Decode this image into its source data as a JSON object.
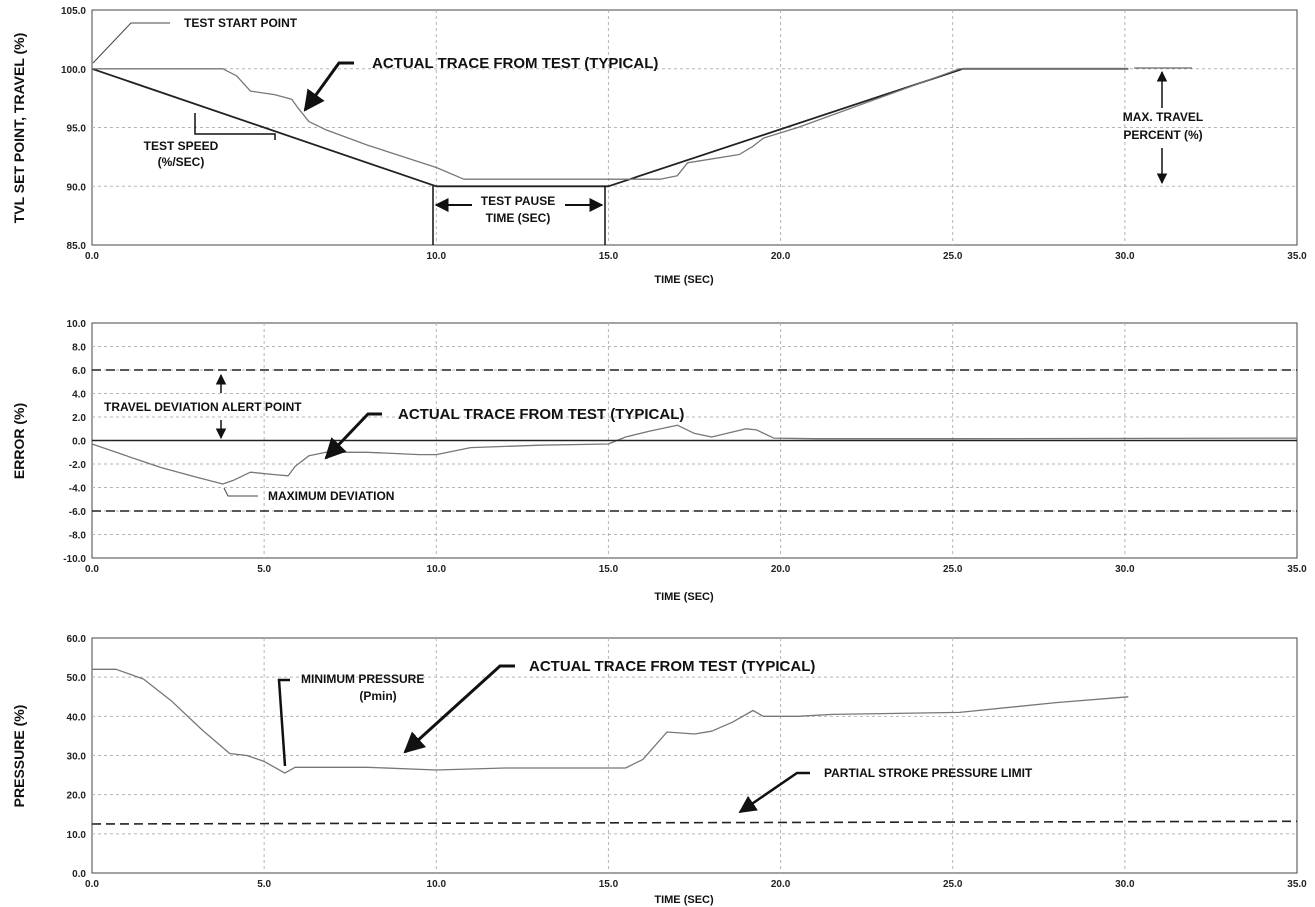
{
  "chart_data": [
    {
      "type": "line",
      "ylabel": "TVL SET POINT, TRAVEL (%)",
      "xlabel": "TIME (SEC)",
      "xlim": [
        0,
        35
      ],
      "ylim": [
        85,
        105
      ],
      "x_ticks": [
        "0.0",
        "10.0",
        "15.0",
        "20.0",
        "25.0",
        "30.0",
        "35.0"
      ],
      "y_ticks": [
        "105.0",
        "100.0",
        "95.0",
        "90.0",
        "85.0"
      ],
      "grid": true,
      "series": [
        {
          "role": "set point",
          "x": [
            0,
            10,
            15,
            25.3,
            30.1
          ],
          "y": [
            100,
            90,
            90,
            100,
            100
          ]
        },
        {
          "role": "travel",
          "x": [
            0,
            3.8,
            4.2,
            4.6,
            5.3,
            5.8,
            6.0,
            6.3,
            6.8,
            8.0,
            10.0,
            10.8,
            16.5,
            17.0,
            17.3,
            18.8,
            19.2,
            19.5,
            20.5,
            25.2,
            30.1
          ],
          "y": [
            100,
            100,
            99.4,
            98.1,
            97.8,
            97.4,
            96.6,
            95.5,
            94.8,
            93.5,
            91.6,
            90.6,
            90.6,
            90.9,
            92.0,
            92.7,
            93.4,
            94.1,
            95.0,
            100,
            100
          ]
        }
      ],
      "annotations": {
        "test_start_point": "TEST START POINT",
        "actual_trace": "ACTUAL TRACE FROM TEST (TYPICAL)",
        "test_speed": "TEST SPEED",
        "test_speed_unit": "(%/SEC)",
        "test_pause": "TEST PAUSE",
        "test_pause_unit": "TIME (SEC)",
        "max_travel": "MAX. TRAVEL",
        "max_travel_unit": "PERCENT (%)"
      }
    },
    {
      "type": "line",
      "ylabel": "ERROR (%)",
      "xlabel": "TIME (SEC)",
      "xlim": [
        0,
        35
      ],
      "ylim": [
        -10,
        10
      ],
      "x_ticks": [
        "0.0",
        "5.0",
        "10.0",
        "15.0",
        "20.0",
        "25.0",
        "30.0",
        "35.0"
      ],
      "y_ticks": [
        "10.0",
        "8.0",
        "6.0",
        "4.0",
        "2.0",
        "0.0",
        "-2.0",
        "-4.0",
        "-6.0",
        "-8.0",
        "-10.0"
      ],
      "grid": true,
      "series": [
        {
          "role": "error",
          "x": [
            0,
            1,
            2,
            3,
            3.8,
            4.1,
            4.6,
            5.3,
            5.7,
            5.9,
            6.3,
            6.8,
            8.0,
            9.5,
            10.0,
            11.0,
            13.0,
            15.0,
            15.5,
            16.2,
            17.0,
            17.5,
            18.0,
            19.0,
            19.3,
            19.8,
            21.0,
            25.0,
            35.0
          ],
          "y": [
            -0.3,
            -1.3,
            -2.3,
            -3.1,
            -3.7,
            -3.4,
            -2.7,
            -2.9,
            -3.0,
            -2.2,
            -1.3,
            -1.0,
            -1.0,
            -1.2,
            -1.2,
            -0.6,
            -0.4,
            -0.3,
            0.3,
            0.8,
            1.3,
            0.6,
            0.3,
            1.0,
            0.9,
            0.2,
            0.15,
            0.15,
            0.2
          ]
        },
        {
          "role": "zero line",
          "x": [
            0,
            35
          ],
          "y": [
            0,
            0
          ]
        },
        {
          "role": "upper alert",
          "x": [
            0,
            35
          ],
          "y": [
            6,
            6
          ]
        },
        {
          "role": "lower alert",
          "x": [
            0,
            35
          ],
          "y": [
            -6,
            -6
          ]
        }
      ],
      "annotations": {
        "travel_deviation": "TRAVEL DEVIATION ALERT POINT",
        "actual_trace": "ACTUAL TRACE FROM TEST (TYPICAL)",
        "maximum_deviation": "MAXIMUM DEVIATION"
      }
    },
    {
      "type": "line",
      "ylabel": "PRESSURE (%)",
      "xlabel": "TIME (SEC)",
      "xlim": [
        0,
        35
      ],
      "ylim": [
        0,
        60
      ],
      "x_ticks": [
        "0.0",
        "5.0",
        "10.0",
        "15.0",
        "20.0",
        "25.0",
        "30.0",
        "35.0"
      ],
      "y_ticks": [
        "60.0",
        "50.0",
        "40.0",
        "30.0",
        "20.0",
        "10.0",
        "0.0"
      ],
      "grid": true,
      "series": [
        {
          "role": "pressure",
          "x": [
            0,
            0.7,
            1.5,
            2.3,
            3.2,
            4.0,
            4.5,
            5.0,
            5.6,
            5.9,
            6.4,
            8.0,
            10.0,
            12.0,
            15.5,
            16.0,
            16.7,
            17.5,
            18.0,
            18.6,
            19.2,
            19.5,
            20.5,
            21.5,
            25.2,
            28.0,
            30.1
          ],
          "y": [
            52,
            52,
            49.5,
            44,
            36.5,
            30.5,
            30,
            28.5,
            25.5,
            27,
            27,
            27,
            26.3,
            26.8,
            26.8,
            29,
            36,
            35.5,
            36.2,
            38.5,
            41.5,
            40,
            40,
            40.5,
            41,
            43.5,
            45
          ]
        },
        {
          "role": "pressure limit",
          "x": [
            0,
            35
          ],
          "y": [
            12.5,
            13.2
          ]
        }
      ],
      "annotations": {
        "actual_trace": "ACTUAL TRACE FROM TEST (TYPICAL)",
        "minimum_pressure": "MINIMUM PRESSURE",
        "pmin": "(Pmin)",
        "pressure_limit": "PARTIAL STROKE PRESSURE LIMIT"
      }
    }
  ]
}
